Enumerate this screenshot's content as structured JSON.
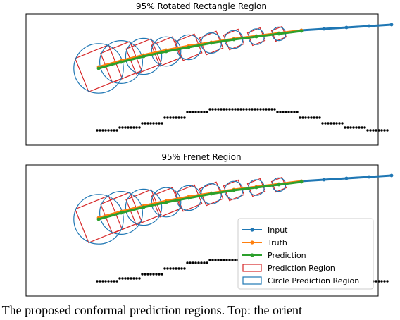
{
  "caption": ".  The proposed conformal prediction regions. Top: the orient",
  "colors": {
    "input": "#1f77b4",
    "truth": "#ff7f0e",
    "prediction": "#2ca02c",
    "region": "#d62728",
    "circle": "#1f77b4",
    "points": "#000000"
  },
  "chart_data": [
    {
      "type": "line",
      "title": "95% Rotated Rectangle Region",
      "xlim": [
        0,
        100
      ],
      "ylim": [
        0,
        100
      ],
      "series": [
        {
          "name": "Input",
          "x": [
            72,
            80,
            88,
            96,
            104
          ],
          "y": [
            72,
            74,
            76,
            78,
            80
          ]
        },
        {
          "name": "Truth",
          "x": [
            0,
            8,
            16,
            24,
            32,
            40,
            48,
            56,
            64,
            72
          ],
          "y": [
            20,
            29,
            37,
            44,
            50,
            55,
            60,
            64,
            68,
            72
          ]
        },
        {
          "name": "Prediction",
          "x": [
            0,
            8,
            16,
            24,
            32,
            40,
            48,
            56,
            64,
            72
          ],
          "y": [
            18,
            27,
            35,
            42,
            48,
            54,
            59,
            63,
            67,
            71
          ]
        }
      ],
      "regions": [
        {
          "kind": "rectangle",
          "x": 0,
          "y": 18,
          "size": 16
        },
        {
          "kind": "rectangle",
          "x": 8,
          "y": 27,
          "size": 14
        },
        {
          "kind": "rectangle",
          "x": 16,
          "y": 35,
          "size": 12
        },
        {
          "kind": "rectangle",
          "x": 24,
          "y": 42,
          "size": 10
        },
        {
          "kind": "rectangle",
          "x": 32,
          "y": 48,
          "size": 9
        },
        {
          "kind": "rectangle",
          "x": 40,
          "y": 54,
          "size": 8
        },
        {
          "kind": "rectangle",
          "x": 48,
          "y": 59,
          "size": 7
        },
        {
          "kind": "rectangle",
          "x": 56,
          "y": 63,
          "size": 6
        },
        {
          "kind": "rectangle",
          "x": 64,
          "y": 67,
          "size": 5
        },
        {
          "kind": "circle",
          "x": 0,
          "y": 18,
          "r": 22
        },
        {
          "kind": "circle",
          "x": 8,
          "y": 27,
          "r": 19
        },
        {
          "kind": "circle",
          "x": 16,
          "y": 35,
          "r": 16
        },
        {
          "kind": "circle",
          "x": 24,
          "y": 42,
          "r": 13
        },
        {
          "kind": "circle",
          "x": 32,
          "y": 48,
          "r": 11
        },
        {
          "kind": "circle",
          "x": 40,
          "y": 54,
          "r": 9
        },
        {
          "kind": "circle",
          "x": 48,
          "y": 59,
          "r": 8
        },
        {
          "kind": "circle",
          "x": 56,
          "y": 63,
          "r": 7
        },
        {
          "kind": "circle",
          "x": 64,
          "y": 67,
          "r": 6
        }
      ],
      "boundary_points": [
        [
          0,
          -70
        ],
        [
          8,
          -66
        ],
        [
          16,
          -60
        ],
        [
          24,
          -52
        ],
        [
          32,
          -44
        ],
        [
          40,
          -40
        ],
        [
          48,
          -40
        ],
        [
          56,
          -40
        ],
        [
          64,
          -44
        ],
        [
          72,
          -52
        ],
        [
          80,
          -60
        ],
        [
          88,
          -66
        ],
        [
          96,
          -70
        ]
      ],
      "legend": false,
      "grid": false
    },
    {
      "type": "line",
      "title": "95% Frenet Region",
      "xlim": [
        0,
        100
      ],
      "ylim": [
        0,
        100
      ],
      "series": [
        {
          "name": "Input",
          "x": [
            72,
            80,
            88,
            96,
            104
          ],
          "y": [
            72,
            74,
            76,
            78,
            80
          ]
        },
        {
          "name": "Truth",
          "x": [
            0,
            8,
            16,
            24,
            32,
            40,
            48,
            56,
            64,
            72
          ],
          "y": [
            20,
            29,
            37,
            44,
            50,
            55,
            60,
            64,
            68,
            72
          ]
        },
        {
          "name": "Prediction",
          "x": [
            0,
            8,
            16,
            24,
            32,
            40,
            48,
            56,
            64,
            72
          ],
          "y": [
            18,
            27,
            35,
            42,
            48,
            54,
            59,
            63,
            67,
            71
          ]
        }
      ],
      "regions": [
        {
          "kind": "rectangle",
          "x": 0,
          "y": 18,
          "size": 16
        },
        {
          "kind": "rectangle",
          "x": 8,
          "y": 27,
          "size": 14
        },
        {
          "kind": "rectangle",
          "x": 16,
          "y": 35,
          "size": 12
        },
        {
          "kind": "rectangle",
          "x": 24,
          "y": 42,
          "size": 10
        },
        {
          "kind": "rectangle",
          "x": 32,
          "y": 48,
          "size": 9
        },
        {
          "kind": "rectangle",
          "x": 40,
          "y": 54,
          "size": 8
        },
        {
          "kind": "rectangle",
          "x": 48,
          "y": 59,
          "size": 7
        },
        {
          "kind": "rectangle",
          "x": 56,
          "y": 63,
          "size": 6
        },
        {
          "kind": "rectangle",
          "x": 64,
          "y": 67,
          "size": 5
        },
        {
          "kind": "circle",
          "x": 0,
          "y": 18,
          "r": 22
        },
        {
          "kind": "circle",
          "x": 8,
          "y": 27,
          "r": 19
        },
        {
          "kind": "circle",
          "x": 16,
          "y": 35,
          "r": 16
        },
        {
          "kind": "circle",
          "x": 24,
          "y": 42,
          "r": 13
        },
        {
          "kind": "circle",
          "x": 32,
          "y": 48,
          "r": 11
        },
        {
          "kind": "circle",
          "x": 40,
          "y": 54,
          "r": 9
        },
        {
          "kind": "circle",
          "x": 48,
          "y": 59,
          "r": 8
        },
        {
          "kind": "circle",
          "x": 56,
          "y": 63,
          "r": 7
        },
        {
          "kind": "circle",
          "x": 64,
          "y": 67,
          "r": 6
        }
      ],
      "boundary_points": [
        [
          0,
          -70
        ],
        [
          8,
          -66
        ],
        [
          16,
          -60
        ],
        [
          24,
          -52
        ],
        [
          32,
          -44
        ],
        [
          40,
          -40
        ],
        [
          48,
          -40
        ],
        [
          56,
          -40
        ],
        [
          64,
          -44
        ],
        [
          72,
          -52
        ],
        [
          80,
          -60
        ],
        [
          88,
          -66
        ],
        [
          96,
          -70
        ]
      ],
      "legend": true,
      "legend_position": "bottom-right",
      "legend_entries": [
        "Input",
        "Truth",
        "Prediction",
        "Prediction Region",
        "Circle Prediction Region"
      ],
      "grid": false
    }
  ]
}
